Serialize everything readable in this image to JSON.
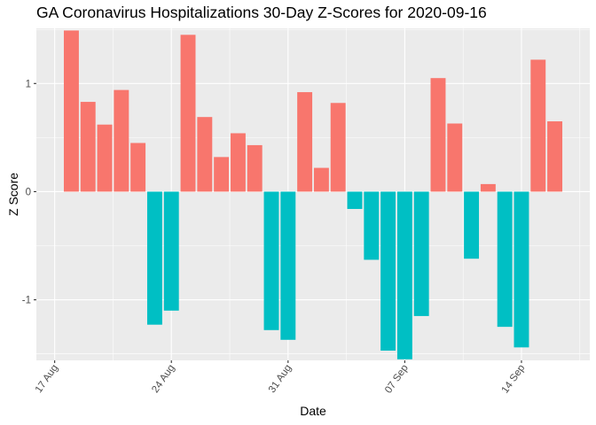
{
  "chart_data": {
    "type": "bar",
    "title": "GA Coronavirus Hospitalizations 30-Day Z-Scores for 2020-09-16",
    "xlabel": "Date",
    "ylabel": "Z Score",
    "x_tick_labels": [
      "17 Aug",
      "24 Aug",
      "31 Aug",
      "07 Sep",
      "14 Sep"
    ],
    "y_tick_labels": [
      "-1",
      "0",
      "1"
    ],
    "x_range": [
      "2020-08-17",
      "2020-09-17"
    ],
    "ylim": [
      -1.56,
      1.51
    ],
    "grid": true,
    "legend": "none",
    "colors": {
      "positive": "#F8766D",
      "negative": "#00BFC4",
      "panel": "#EBEBEB",
      "grid_major": "#FFFFFF",
      "grid_minor": "#F5F5F5"
    },
    "categories": [
      "2020-08-18",
      "2020-08-19",
      "2020-08-20",
      "2020-08-21",
      "2020-08-22",
      "2020-08-23",
      "2020-08-24",
      "2020-08-25",
      "2020-08-26",
      "2020-08-27",
      "2020-08-28",
      "2020-08-29",
      "2020-08-30",
      "2020-08-31",
      "2020-09-01",
      "2020-09-02",
      "2020-09-03",
      "2020-09-04",
      "2020-09-05",
      "2020-09-06",
      "2020-09-07",
      "2020-09-08",
      "2020-09-09",
      "2020-09-10",
      "2020-09-11",
      "2020-09-12",
      "2020-09-13",
      "2020-09-14",
      "2020-09-15",
      "2020-09-16"
    ],
    "values": [
      1.49,
      0.83,
      0.62,
      0.94,
      0.45,
      -1.23,
      -1.1,
      1.45,
      0.69,
      0.32,
      0.54,
      0.43,
      -1.28,
      -1.37,
      0.92,
      0.22,
      0.82,
      -0.16,
      -0.63,
      -1.47,
      -1.55,
      -1.15,
      1.05,
      0.63,
      -0.62,
      0.07,
      -1.25,
      -1.44,
      1.22,
      0.65
    ]
  }
}
